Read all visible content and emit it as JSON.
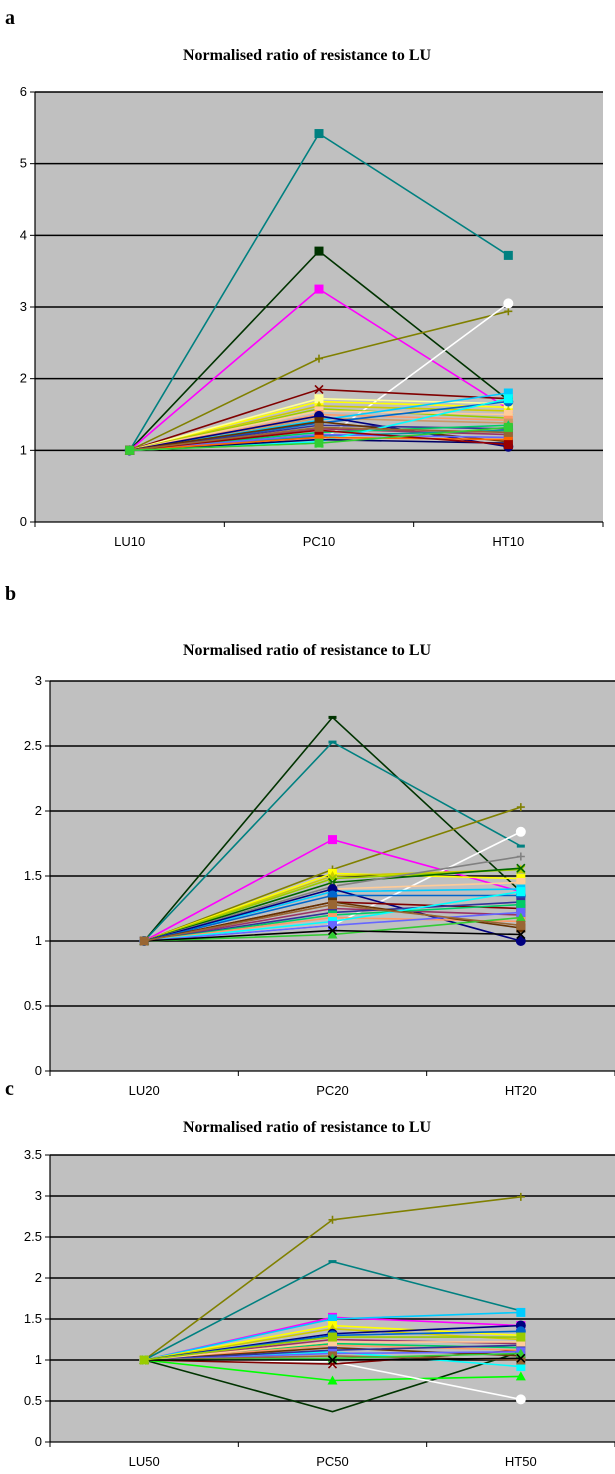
{
  "chart_data": [
    {
      "panel": "a",
      "type": "line",
      "title": "Normalised ratio of resistance to LU",
      "categories": [
        "LU10",
        "PC10",
        "HT10"
      ],
      "ylim": [
        0,
        6
      ],
      "yticks": [
        "0",
        "1",
        "2",
        "3",
        "4",
        "5",
        "6"
      ],
      "ytick_values": [
        0,
        1,
        2,
        3,
        4,
        5,
        6
      ],
      "grid": true,
      "series": [
        {
          "color": "#008080",
          "marker": "square",
          "values": [
            1,
            5.42,
            3.72
          ]
        },
        {
          "color": "#003300",
          "marker": "square",
          "values": [
            1,
            3.78,
            1.7
          ]
        },
        {
          "color": "#ff00ff",
          "marker": "square",
          "values": [
            1,
            3.25,
            1.58
          ]
        },
        {
          "color": "#808000",
          "marker": "plus",
          "values": [
            1,
            2.28,
            2.94
          ]
        },
        {
          "color": "#ffffff",
          "marker": "circle",
          "values": [
            1,
            1.1,
            3.05
          ]
        },
        {
          "color": "#800000",
          "marker": "x",
          "values": [
            1,
            1.85,
            1.72
          ]
        },
        {
          "color": "#ffff00",
          "marker": "square",
          "values": [
            1,
            1.68,
            1.6
          ]
        },
        {
          "color": "#ffff99",
          "marker": "square",
          "values": [
            1,
            1.72,
            1.65
          ]
        },
        {
          "color": "#cccc00",
          "marker": "triangle",
          "values": [
            1,
            1.62,
            1.55
          ]
        },
        {
          "color": "#99cc00",
          "marker": "triangle",
          "values": [
            1,
            1.58,
            1.45
          ]
        },
        {
          "color": "#ffcc99",
          "marker": "square",
          "values": [
            1,
            1.55,
            1.5
          ]
        },
        {
          "color": "#ff9966",
          "marker": "square",
          "values": [
            1,
            1.5,
            1.42
          ]
        },
        {
          "color": "#cc9966",
          "marker": "square",
          "values": [
            1,
            1.45,
            1.38
          ]
        },
        {
          "color": "#00ccff",
          "marker": "square",
          "values": [
            1,
            1.42,
            1.8
          ]
        },
        {
          "color": "#0066cc",
          "marker": "circle",
          "values": [
            1,
            1.38,
            1.68
          ]
        },
        {
          "color": "#000080",
          "marker": "circle",
          "values": [
            1,
            1.48,
            1.05
          ]
        },
        {
          "color": "#333399",
          "marker": "square",
          "values": [
            1,
            1.35,
            1.3
          ]
        },
        {
          "color": "#663300",
          "marker": "square",
          "values": [
            1,
            1.4,
            1.12
          ]
        },
        {
          "color": "#993366",
          "marker": "square",
          "values": [
            1,
            1.3,
            1.22
          ]
        },
        {
          "color": "#00cc66",
          "marker": "triangle",
          "values": [
            1,
            1.25,
            1.35
          ]
        },
        {
          "color": "#009999",
          "marker": "square",
          "values": [
            1,
            1.2,
            1.28
          ]
        },
        {
          "color": "#6666ff",
          "marker": "square",
          "values": [
            1,
            1.22,
            1.18
          ]
        },
        {
          "color": "#00ffff",
          "marker": "square",
          "values": [
            1,
            1.12,
            1.72
          ]
        },
        {
          "color": "#000066",
          "marker": "square",
          "values": [
            1,
            1.15,
            1.1
          ]
        },
        {
          "color": "#ff6600",
          "marker": "square",
          "values": [
            1,
            1.18,
            1.15
          ]
        },
        {
          "color": "#990000",
          "marker": "square",
          "values": [
            1,
            1.28,
            1.08
          ]
        },
        {
          "color": "#996633",
          "marker": "square",
          "values": [
            1,
            1.32,
            1.25
          ]
        },
        {
          "color": "#33cc33",
          "marker": "square",
          "values": [
            1,
            1.1,
            1.32
          ]
        }
      ]
    },
    {
      "panel": "b",
      "type": "line",
      "title": "Normalised ratio of resistance to LU",
      "categories": [
        "LU20",
        "PC20",
        "HT20"
      ],
      "ylim": [
        0,
        3
      ],
      "yticks": [
        "0",
        "0.5",
        "1",
        "1.5",
        "2",
        "2.5",
        "3"
      ],
      "ytick_values": [
        0,
        0.5,
        1,
        1.5,
        2,
        2.5,
        3
      ],
      "grid": true,
      "series": [
        {
          "color": "#003300",
          "marker": "dash",
          "values": [
            1,
            2.72,
            1.38
          ]
        },
        {
          "color": "#008080",
          "marker": "dash",
          "values": [
            1,
            2.53,
            1.73
          ]
        },
        {
          "color": "#808000",
          "marker": "plus",
          "values": [
            1,
            1.55,
            2.03
          ]
        },
        {
          "color": "#ff00ff",
          "marker": "square",
          "values": [
            1,
            1.78,
            1.38
          ]
        },
        {
          "color": "#ffffff",
          "marker": "circle",
          "values": [
            1,
            1.12,
            1.84
          ]
        },
        {
          "color": "#ffff00",
          "marker": "square",
          "values": [
            1,
            1.52,
            1.48
          ]
        },
        {
          "color": "#cccc00",
          "marker": "triangle",
          "values": [
            1,
            1.5,
            1.55
          ]
        },
        {
          "color": "#99cc00",
          "marker": "x",
          "values": [
            1,
            1.48,
            1.55
          ]
        },
        {
          "color": "#006600",
          "marker": "x",
          "values": [
            1,
            1.45,
            1.56
          ]
        },
        {
          "color": "#808080",
          "marker": "plus",
          "values": [
            1,
            1.42,
            1.65
          ]
        },
        {
          "color": "#ffcc99",
          "marker": "square",
          "values": [
            1,
            1.4,
            1.45
          ]
        },
        {
          "color": "#00ccff",
          "marker": "square",
          "values": [
            1,
            1.38,
            1.4
          ]
        },
        {
          "color": "#000080",
          "marker": "circle",
          "values": [
            1,
            1.4,
            1.0
          ]
        },
        {
          "color": "#0066cc",
          "marker": "circle",
          "values": [
            1,
            1.35,
            1.35
          ]
        },
        {
          "color": "#800000",
          "marker": "square",
          "values": [
            1,
            1.3,
            1.25
          ]
        },
        {
          "color": "#993366",
          "marker": "square",
          "values": [
            1,
            1.25,
            1.2
          ]
        },
        {
          "color": "#333399",
          "marker": "square",
          "values": [
            1,
            1.22,
            1.3
          ]
        },
        {
          "color": "#00cc66",
          "marker": "square",
          "values": [
            1,
            1.2,
            1.28
          ]
        },
        {
          "color": "#ff9966",
          "marker": "square",
          "values": [
            1,
            1.18,
            1.15
          ]
        },
        {
          "color": "#663300",
          "marker": "square",
          "values": [
            1,
            1.3,
            1.1
          ]
        },
        {
          "color": "#00ffff",
          "marker": "square",
          "values": [
            1,
            1.15,
            1.38
          ]
        },
        {
          "color": "#6666ff",
          "marker": "square",
          "values": [
            1,
            1.12,
            1.22
          ]
        },
        {
          "color": "#33cc33",
          "marker": "triangle",
          "values": [
            1,
            1.05,
            1.18
          ]
        },
        {
          "color": "#000000",
          "marker": "x",
          "values": [
            1,
            1.08,
            1.05
          ]
        },
        {
          "color": "#996633",
          "marker": "square",
          "values": [
            1,
            1.28,
            1.12
          ]
        }
      ]
    },
    {
      "panel": "c",
      "type": "line",
      "title": "Normalised ratio of resistance to LU",
      "categories": [
        "LU50",
        "PC50",
        "HT50"
      ],
      "ylim": [
        0,
        3.5
      ],
      "yticks": [
        "0",
        "0.5",
        "1",
        "1.5",
        "2",
        "2.5",
        "3",
        "3.5"
      ],
      "ytick_values": [
        0,
        0.5,
        1,
        1.5,
        2,
        2.5,
        3,
        3.5
      ],
      "grid": true,
      "series": [
        {
          "color": "#808000",
          "marker": "plus",
          "values": [
            1,
            2.71,
            2.99
          ]
        },
        {
          "color": "#008080",
          "marker": "dash",
          "values": [
            1,
            2.2,
            1.6
          ]
        },
        {
          "color": "#ff00ff",
          "marker": "square",
          "values": [
            1,
            1.52,
            1.42
          ]
        },
        {
          "color": "#00ccff",
          "marker": "square",
          "values": [
            1,
            1.5,
            1.58
          ]
        },
        {
          "color": "#ffff00",
          "marker": "square",
          "values": [
            1,
            1.42,
            1.3
          ]
        },
        {
          "color": "#cccc00",
          "marker": "triangle",
          "values": [
            1,
            1.38,
            1.25
          ]
        },
        {
          "color": "#000080",
          "marker": "circle",
          "values": [
            1,
            1.32,
            1.42
          ]
        },
        {
          "color": "#0066cc",
          "marker": "circle",
          "values": [
            1,
            1.3,
            1.35
          ]
        },
        {
          "color": "#003300",
          "marker": "none",
          "values": [
            1,
            0.37,
            1.1
          ]
        },
        {
          "color": "#00ff00",
          "marker": "triangle",
          "values": [
            1,
            0.75,
            0.8
          ]
        },
        {
          "color": "#ffffff",
          "marker": "circle",
          "values": [
            1,
            0.98,
            0.52
          ]
        },
        {
          "color": "#800000",
          "marker": "x",
          "values": [
            1,
            0.95,
            1.12
          ]
        },
        {
          "color": "#00ffff",
          "marker": "square",
          "values": [
            1,
            1.1,
            0.92
          ]
        },
        {
          "color": "#993366",
          "marker": "square",
          "values": [
            1,
            1.25,
            1.2
          ]
        },
        {
          "color": "#00cc66",
          "marker": "square",
          "values": [
            1,
            1.2,
            1.15
          ]
        },
        {
          "color": "#ff9966",
          "marker": "square",
          "values": [
            1,
            1.18,
            1.12
          ]
        },
        {
          "color": "#663300",
          "marker": "square",
          "values": [
            1,
            1.15,
            1.05
          ]
        },
        {
          "color": "#333399",
          "marker": "square",
          "values": [
            1,
            1.12,
            1.18
          ]
        },
        {
          "color": "#6666ff",
          "marker": "square",
          "values": [
            1,
            1.08,
            1.1
          ]
        },
        {
          "color": "#996633",
          "marker": "square",
          "values": [
            1,
            1.05,
            1.0
          ]
        },
        {
          "color": "#ffcc99",
          "marker": "square",
          "values": [
            1,
            1.22,
            1.22
          ]
        },
        {
          "color": "#33cc33",
          "marker": "triangle",
          "values": [
            1,
            1.02,
            1.08
          ]
        },
        {
          "color": "#000000",
          "marker": "x",
          "values": [
            1,
            1.0,
            1.02
          ]
        },
        {
          "color": "#99cc00",
          "marker": "square",
          "values": [
            1,
            1.28,
            1.28
          ]
        }
      ]
    }
  ]
}
